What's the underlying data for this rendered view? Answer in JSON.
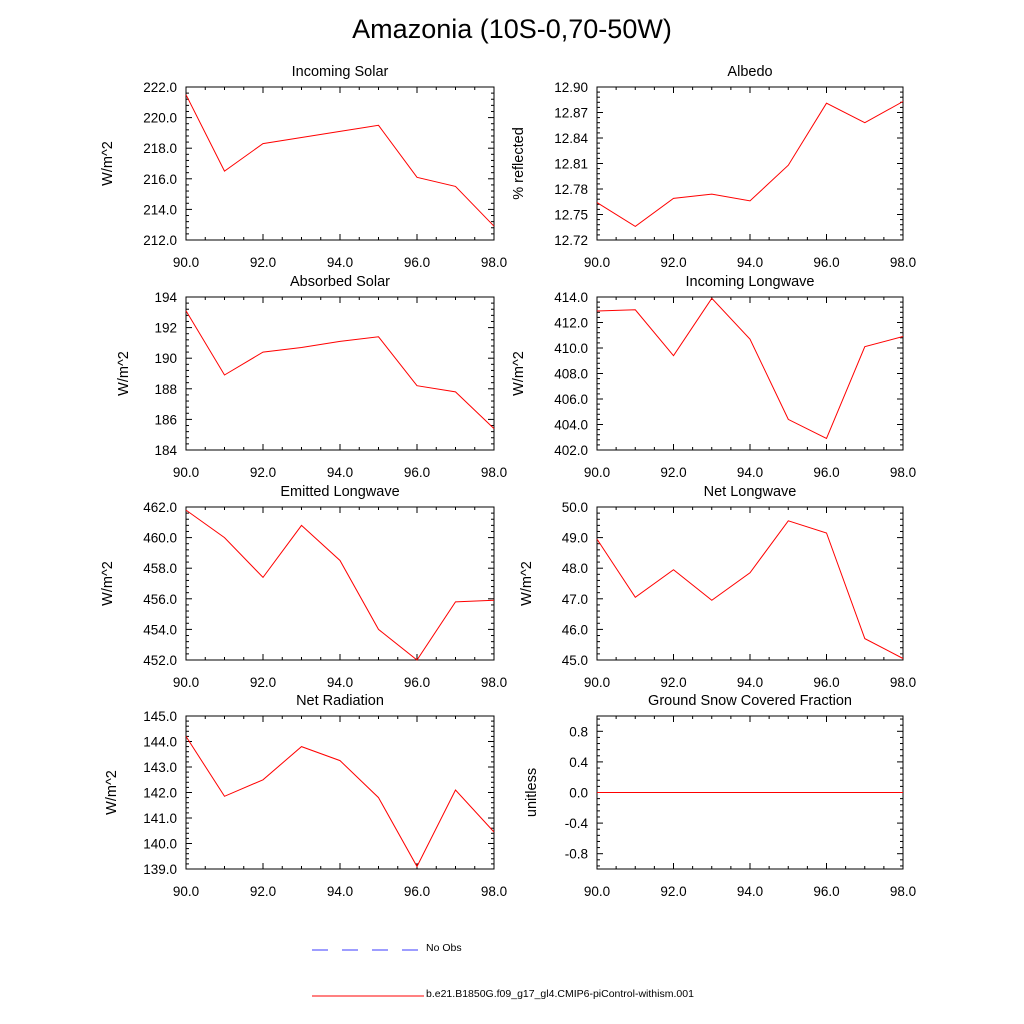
{
  "page_title": "Amazonia (10S-0,70-50W)",
  "colors": {
    "model": "#ff0000",
    "obs": "#0000ff"
  },
  "legend": [
    {
      "label": "No Obs",
      "style": "dashed",
      "color": "#0000ff"
    },
    {
      "label": "b.e21.B1850G.f09_g17_gl4.CMIP6-piControl-withism.001",
      "style": "solid",
      "color": "#ff0000"
    }
  ],
  "chart_data": [
    {
      "type": "line",
      "title": "Incoming Solar",
      "xlabel": "",
      "ylabel": "W/m^2",
      "xlim": [
        90,
        98
      ],
      "ylim": [
        212,
        222
      ],
      "xticks": [
        "90.0",
        "92.0",
        "94.0",
        "96.0",
        "98.0"
      ],
      "yticks": [
        "212.0",
        "214.0",
        "216.0",
        "218.0",
        "220.0",
        "222.0"
      ],
      "series": [
        {
          "x": [
            90,
            91,
            92,
            93,
            94,
            95,
            96,
            97,
            98
          ],
          "values": [
            221.5,
            216.5,
            218.3,
            218.7,
            219.1,
            219.5,
            216.1,
            215.5,
            212.9
          ]
        }
      ]
    },
    {
      "type": "line",
      "title": "Albedo",
      "xlabel": "",
      "ylabel": "% reflected",
      "xlim": [
        90,
        98
      ],
      "ylim": [
        12.72,
        12.9
      ],
      "xticks": [
        "90.0",
        "92.0",
        "94.0",
        "96.0",
        "98.0"
      ],
      "yticks": [
        "12.72",
        "12.75",
        "12.78",
        "12.81",
        "12.84",
        "12.87",
        "12.90"
      ],
      "series": [
        {
          "x": [
            90,
            91,
            92,
            93,
            94,
            95,
            96,
            97,
            98
          ],
          "values": [
            12.764,
            12.736,
            12.769,
            12.774,
            12.766,
            12.808,
            12.881,
            12.858,
            12.883
          ]
        }
      ]
    },
    {
      "type": "line",
      "title": "Absorbed Solar",
      "xlabel": "",
      "ylabel": "W/m^2",
      "xlim": [
        90,
        98
      ],
      "ylim": [
        184,
        194
      ],
      "xticks": [
        "90.0",
        "92.0",
        "94.0",
        "96.0",
        "98.0"
      ],
      "yticks": [
        "184",
        "186",
        "188",
        "190",
        "192",
        "194"
      ],
      "series": [
        {
          "x": [
            90,
            91,
            92,
            93,
            94,
            95,
            96,
            97,
            98
          ],
          "values": [
            193.1,
            188.9,
            190.4,
            190.7,
            191.1,
            191.4,
            188.2,
            187.8,
            185.4
          ]
        }
      ]
    },
    {
      "type": "line",
      "title": "Incoming Longwave",
      "xlabel": "",
      "ylabel": "W/m^2",
      "xlim": [
        90,
        98
      ],
      "ylim": [
        402,
        414
      ],
      "xticks": [
        "90.0",
        "92.0",
        "94.0",
        "96.0",
        "98.0"
      ],
      "yticks": [
        "402.0",
        "404.0",
        "406.0",
        "408.0",
        "410.0",
        "412.0",
        "414.0"
      ],
      "series": [
        {
          "x": [
            90,
            91,
            92,
            93,
            94,
            95,
            96,
            97,
            98
          ],
          "values": [
            412.9,
            413.0,
            409.4,
            413.9,
            410.7,
            404.4,
            402.9,
            410.1,
            410.9
          ]
        }
      ]
    },
    {
      "type": "line",
      "title": "Emitted Longwave",
      "xlabel": "",
      "ylabel": "W/m^2",
      "xlim": [
        90,
        98
      ],
      "ylim": [
        452,
        462
      ],
      "xticks": [
        "90.0",
        "92.0",
        "94.0",
        "96.0",
        "98.0"
      ],
      "yticks": [
        "452.0",
        "454.0",
        "456.0",
        "458.0",
        "460.0",
        "462.0"
      ],
      "series": [
        {
          "x": [
            90,
            91,
            92,
            93,
            94,
            95,
            96,
            97,
            98
          ],
          "values": [
            461.8,
            460.0,
            457.4,
            460.8,
            458.5,
            454.0,
            452.0,
            455.8,
            455.9
          ]
        }
      ]
    },
    {
      "type": "line",
      "title": "Net Longwave",
      "xlabel": "",
      "ylabel": "W/m^2",
      "xlim": [
        90,
        98
      ],
      "ylim": [
        45,
        50
      ],
      "xticks": [
        "90.0",
        "92.0",
        "94.0",
        "96.0",
        "98.0"
      ],
      "yticks": [
        "45.0",
        "46.0",
        "47.0",
        "48.0",
        "49.0",
        "50.0"
      ],
      "series": [
        {
          "x": [
            90,
            91,
            92,
            93,
            94,
            95,
            96,
            97,
            98
          ],
          "values": [
            48.95,
            47.05,
            47.95,
            46.95,
            47.85,
            49.55,
            49.15,
            45.7,
            45.05
          ]
        }
      ]
    },
    {
      "type": "line",
      "title": "Net Radiation",
      "xlabel": "",
      "ylabel": "W/m^2",
      "xlim": [
        90,
        98
      ],
      "ylim": [
        139,
        145
      ],
      "xticks": [
        "90.0",
        "92.0",
        "94.0",
        "96.0",
        "98.0"
      ],
      "yticks": [
        "139.0",
        "140.0",
        "141.0",
        "142.0",
        "143.0",
        "144.0",
        "145.0"
      ],
      "series": [
        {
          "x": [
            90,
            91,
            92,
            93,
            94,
            95,
            96,
            97,
            98
          ],
          "values": [
            144.2,
            141.85,
            142.5,
            143.8,
            143.25,
            141.8,
            139.1,
            142.1,
            140.45
          ]
        }
      ]
    },
    {
      "type": "line",
      "title": "Ground Snow Covered Fraction",
      "xlabel": "",
      "ylabel": "unitless",
      "xlim": [
        90,
        98
      ],
      "ylim": [
        -1.0,
        1.0
      ],
      "xticks": [
        "90.0",
        "92.0",
        "94.0",
        "96.0",
        "98.0"
      ],
      "yticks": [
        "-0.8",
        "-0.4",
        "0.0",
        "0.4",
        "0.8"
      ],
      "series": [
        {
          "x": [
            90,
            91,
            92,
            93,
            94,
            95,
            96,
            97,
            98
          ],
          "values": [
            0,
            0,
            0,
            0,
            0,
            0,
            0,
            0,
            0
          ]
        }
      ]
    }
  ]
}
